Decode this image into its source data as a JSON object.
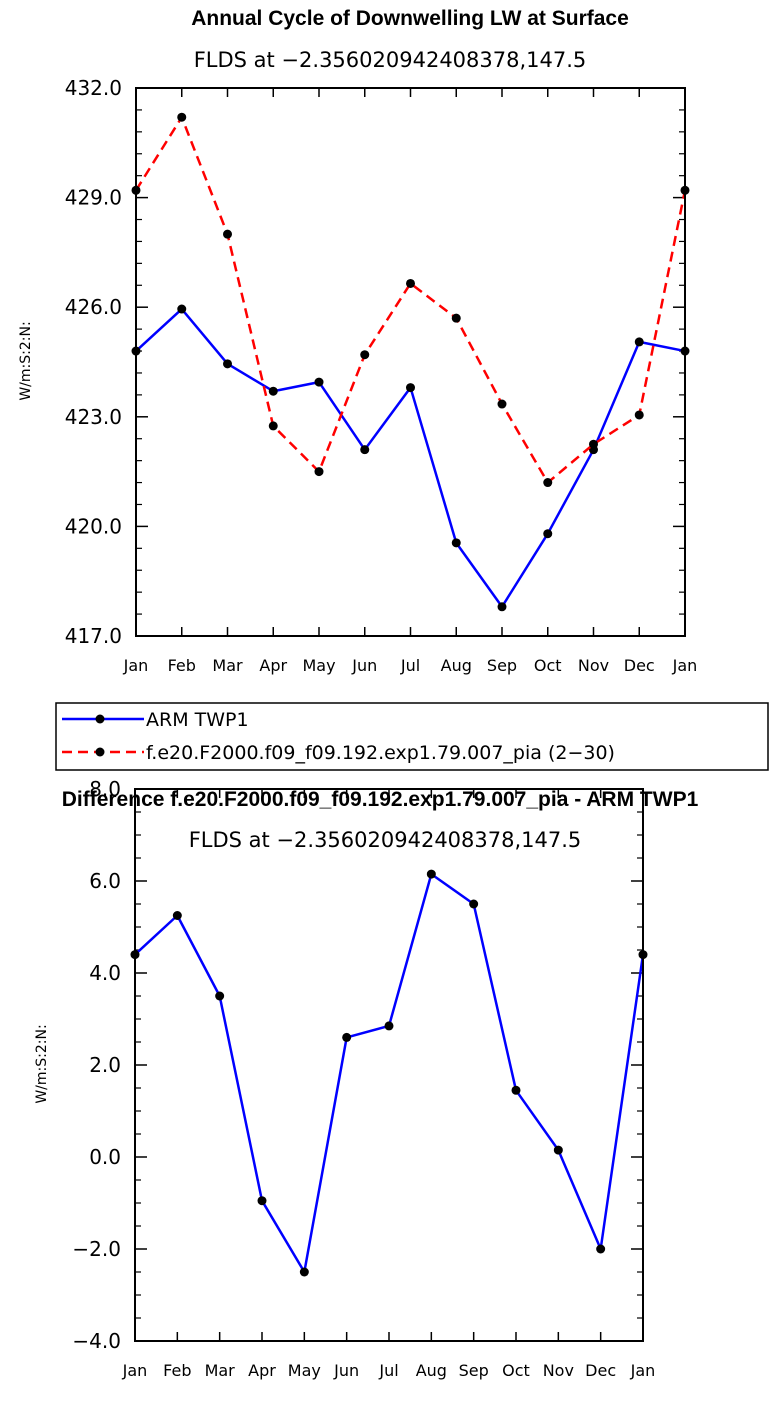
{
  "chart_data": [
    {
      "type": "line",
      "title": "Annual Cycle of Downwelling LW at Surface",
      "subtitle": "FLDS at −2.356020942408378,147.5",
      "xlabel": "",
      "ylabel": "W/m:S:2:N:",
      "categories": [
        "Jan",
        "Feb",
        "Mar",
        "Apr",
        "May",
        "Jun",
        "Jul",
        "Aug",
        "Sep",
        "Oct",
        "Nov",
        "Dec",
        "Jan"
      ],
      "ylim": [
        417,
        432
      ],
      "yticks": [
        "417.0",
        "420.0",
        "423.0",
        "426.0",
        "429.0",
        "432.0"
      ],
      "series": [
        {
          "name": "ARM TWP1",
          "color": "#0000ff",
          "dash": "solid",
          "values": [
            424.8,
            425.95,
            424.45,
            423.7,
            423.95,
            422.1,
            423.8,
            419.55,
            417.8,
            419.8,
            422.1,
            425.05,
            424.8
          ]
        },
        {
          "name": "f.e20.F2000.f09_f09.192.exp1.79.007_pia (2−30)",
          "color": "#ff0000",
          "dash": "dashed",
          "values": [
            429.2,
            431.2,
            428.0,
            422.75,
            421.5,
            424.7,
            426.65,
            425.7,
            423.35,
            421.2,
            422.25,
            423.05,
            429.2
          ]
        }
      ]
    },
    {
      "type": "line",
      "title": "Difference f.e20.F2000.f09_f09.192.exp1.79.007_pia - ARM TWP1",
      "subtitle": "FLDS at −2.356020942408378,147.5",
      "xlabel": "",
      "ylabel": "W/m:S:2:N:",
      "categories": [
        "Jan",
        "Feb",
        "Mar",
        "Apr",
        "May",
        "Jun",
        "Jul",
        "Aug",
        "Sep",
        "Oct",
        "Nov",
        "Dec",
        "Jan"
      ],
      "ylim": [
        -4,
        8
      ],
      "yticks": [
        "−4.0",
        "−2.0",
        "0.0",
        "2.0",
        "4.0",
        "6.0",
        "8.0"
      ],
      "series": [
        {
          "name": "Difference",
          "color": "#0000ff",
          "dash": "solid",
          "values": [
            4.4,
            5.25,
            3.5,
            -0.95,
            -2.5,
            2.6,
            2.85,
            6.15,
            5.5,
            1.45,
            0.15,
            -2.0,
            4.4
          ]
        }
      ]
    }
  ]
}
